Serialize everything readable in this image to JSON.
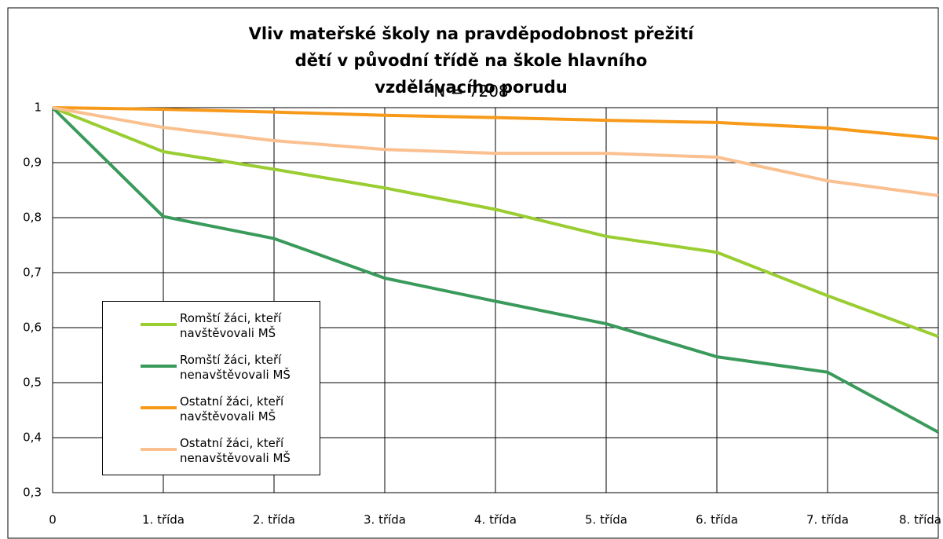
{
  "chart_data": {
    "type": "line",
    "title": "Vliv mateřské školy na pravděpodobnost přežití dětí v původní třídě na škole hlavního vzdělávacího porudu",
    "subtitle": "N = 7208",
    "categories": [
      "0",
      "1. třída",
      "2. třída",
      "3. třída",
      "4. třída",
      "5. třída",
      "6. třída",
      "7. třída",
      "8. třída"
    ],
    "series": [
      {
        "name": "Romští žáci, kteří navštěvovali MŠ",
        "color": "#9acd32",
        "values": [
          1,
          0.92,
          0.888,
          0.854,
          0.815,
          0.766,
          0.737,
          0.658,
          0.584
        ]
      },
      {
        "name": "Romští žáci, kteří nenavštěvovali MŠ",
        "color": "#3a9a5b",
        "values": [
          1,
          0.802,
          0.762,
          0.69,
          0.648,
          0.607,
          0.547,
          0.519,
          0.41
        ]
      },
      {
        "name": "Ostatní žáci, kteří navštěvovali MŠ",
        "color": "#f79a1a",
        "values": [
          1,
          0.997,
          0.992,
          0.986,
          0.982,
          0.977,
          0.973,
          0.963,
          0.944
        ]
      },
      {
        "name": "Ostatní žáci, kteří nenavštěvovali MŠ",
        "color": "#fac090",
        "values": [
          1,
          0.964,
          0.94,
          0.924,
          0.917,
          0.917,
          0.91,
          0.867,
          0.84
        ]
      }
    ],
    "ylim": [
      0.3,
      1
    ],
    "yticks": [
      {
        "value": 0.3,
        "label": "0,3"
      },
      {
        "value": 0.4,
        "label": "0,4"
      },
      {
        "value": 0.5,
        "label": "0,5"
      },
      {
        "value": 0.6,
        "label": "0,6"
      },
      {
        "value": 0.7,
        "label": "0,7"
      },
      {
        "value": 0.8,
        "label": "0,8"
      },
      {
        "value": 0.9,
        "label": "0,9"
      },
      1
    ],
    "grid": true
  }
}
